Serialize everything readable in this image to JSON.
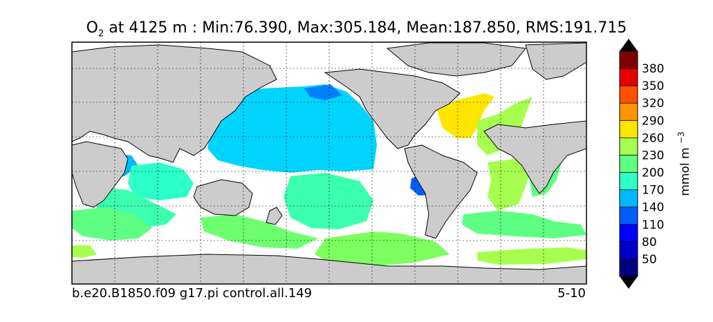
{
  "title": {
    "variable": "O",
    "subscript": "2",
    "text": " at 4125 m : Min:76.390, Max:305.184, Mean:187.850, RMS:191.715"
  },
  "caption_left": "b.e20.B1850.f09 g17.pi control.all.149",
  "caption_right": "5-10",
  "colorbar": {
    "label": "mmol m",
    "label_exponent": "−3",
    "ticks": [
      "50",
      "80",
      "110",
      "140",
      "170",
      "200",
      "230",
      "260",
      "290",
      "320",
      "350",
      "380"
    ],
    "colors": [
      "#00007f",
      "#0000c8",
      "#0000ff",
      "#005eff",
      "#00b8ff",
      "#2dffc9",
      "#5eff82",
      "#a6ff4f",
      "#ffe600",
      "#ff9400",
      "#ff4f00",
      "#e60000",
      "#7f0000"
    ]
  },
  "map": {
    "land_color": "#cccccc",
    "ocean_nodata_color": "#ffffff"
  }
}
